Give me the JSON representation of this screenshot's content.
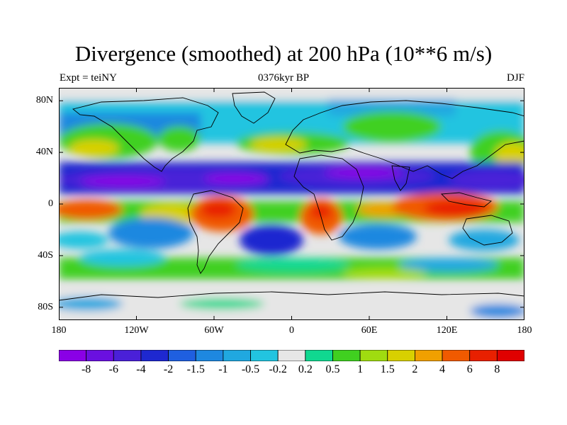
{
  "title": "Divergence (smoothed) at 200 hPa (10**6 m/s)",
  "subtitle_left": "Expt = teiNY",
  "subtitle_center": "0376kyr BP",
  "subtitle_right": "DJF",
  "chart_data": {
    "type": "heatmap",
    "projection": "cylindrical equidistant",
    "variable": "Divergence (smoothed) at 200 hPa",
    "units": "10**6 m/s",
    "xlim": [
      -180,
      180
    ],
    "ylim": [
      -90,
      90
    ],
    "x_ticks": [
      {
        "value": -180,
        "label": "180"
      },
      {
        "value": -120,
        "label": "120W"
      },
      {
        "value": -60,
        "label": "60W"
      },
      {
        "value": 0,
        "label": "0"
      },
      {
        "value": 60,
        "label": "60E"
      },
      {
        "value": 120,
        "label": "120E"
      },
      {
        "value": 180,
        "label": "180"
      }
    ],
    "y_ticks": [
      {
        "value": 80,
        "label": "80N"
      },
      {
        "value": 40,
        "label": "40N"
      },
      {
        "value": 0,
        "label": "0"
      },
      {
        "value": -40,
        "label": "40S"
      },
      {
        "value": -80,
        "label": "80S"
      }
    ],
    "colorbar": {
      "labels": [
        "-8",
        "-6",
        "-4",
        "-2",
        "-1.5",
        "-1",
        "-0.5",
        "-0.2",
        "0.2",
        "0.5",
        "1",
        "1.5",
        "2",
        "4",
        "6",
        "8"
      ],
      "colors": [
        "#8a00e6",
        "#6a10e0",
        "#4a20d8",
        "#1e28d0",
        "#1f5fe0",
        "#1e88e0",
        "#20a8e0",
        "#22c4e0",
        "#e6e6e6",
        "#10d890",
        "#40d020",
        "#a0dc10",
        "#d8d000",
        "#f0a000",
        "#f05a00",
        "#e82000",
        "#e00000"
      ]
    },
    "features": [
      {
        "region": "Tropical band ~0-25N across all longitudes",
        "sign": "convergence",
        "level": "-4 to -8"
      },
      {
        "region": "Southern tropics / Maritime Continent & South America & southern Africa",
        "sign": "divergence",
        "level": "2 to 8"
      },
      {
        "region": "Mid-latitude storm tracks 30-50N",
        "sign": "mixed",
        "level": "-2 to 1.5"
      },
      {
        "region": "Southern Ocean 40-60S",
        "sign": "weak divergence",
        "level": "0.2 to 2"
      },
      {
        "region": "Polar regions",
        "sign": "near zero",
        "level": "-0.2 to 0.2"
      }
    ]
  }
}
